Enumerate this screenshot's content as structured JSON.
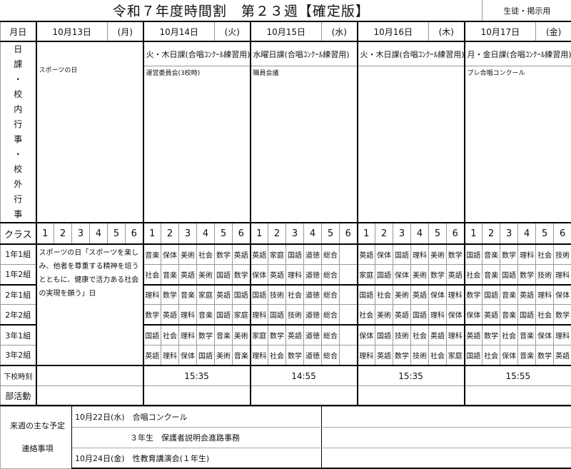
{
  "header": {
    "title": "令和７年度時間割　第２３週【確定版】",
    "audience": "生徒・掲示用"
  },
  "labels": {
    "date": "月日",
    "schedule_events": "日課・校内行事・校外行事",
    "class": "クラス",
    "dismissal": "下校時刻",
    "club": "部活動",
    "next_week": "来週の主な予定",
    "contact": "連絡事項"
  },
  "periods": [
    "1",
    "2",
    "3",
    "4",
    "5",
    "6"
  ],
  "classes": [
    "1年1組",
    "1年2組",
    "2年1組",
    "2年2組",
    "3年1組",
    "3年2組"
  ],
  "days": [
    {
      "date": "10月13日",
      "weekday": "(月)",
      "schedule_type": "",
      "note": "スポーツの日",
      "dismissal": "",
      "club": "",
      "holiday_text": "スポーツの日「スポーツを楽しみ、他者を尊重する精神を培うとともに、健康で活力ある社会の実現を願う」日"
    },
    {
      "date": "10月14日",
      "weekday": "(火)",
      "schedule_type": "火・木日課(合唱ｺﾝｸｰﾙ練習用)",
      "note": "運営委員会(3校時)",
      "dismissal": "15:35",
      "club": "",
      "timetable": [
        [
          "音楽",
          "保体",
          "美術",
          "社会",
          "数学",
          "英語"
        ],
        [
          "社会",
          "音楽",
          "英語",
          "美術",
          "国語",
          "数学"
        ],
        [
          "理科",
          "数学",
          "音楽",
          "家庭",
          "英語",
          "国語"
        ],
        [
          "数学",
          "英語",
          "理科",
          "音楽",
          "国語",
          "家庭"
        ],
        [
          "国語",
          "社会",
          "理科",
          "数学",
          "音楽",
          "美術"
        ],
        [
          "英語",
          "理科",
          "保体",
          "国語",
          "美術",
          "音楽"
        ]
      ]
    },
    {
      "date": "10月15日",
      "weekday": "(水)",
      "schedule_type": "水曜日課(合唱ｺﾝｸｰﾙ練習用)",
      "note": "職員会議",
      "dismissal": "14:55",
      "club": "",
      "timetable": [
        [
          "英語",
          "家庭",
          "国語",
          "道徳",
          "総合",
          ""
        ],
        [
          "保体",
          "英語",
          "理科",
          "道徳",
          "総合",
          ""
        ],
        [
          "国語",
          "技術",
          "社会",
          "道徳",
          "総合",
          ""
        ],
        [
          "理科",
          "国語",
          "技術",
          "道徳",
          "総合",
          ""
        ],
        [
          "家庭",
          "数学",
          "英語",
          "道徳",
          "総合",
          ""
        ],
        [
          "理科",
          "社会",
          "数学",
          "道徳",
          "総合",
          ""
        ]
      ]
    },
    {
      "date": "10月16日",
      "weekday": "(木)",
      "schedule_type": "火・木日課(合唱ｺﾝｸｰﾙ練習用)",
      "note": "",
      "dismissal": "15:35",
      "club": "",
      "timetable": [
        [
          "英語",
          "保体",
          "国語",
          "理科",
          "美術",
          "数学"
        ],
        [
          "家庭",
          "国語",
          "保体",
          "美術",
          "数学",
          "英語"
        ],
        [
          "国語",
          "社会",
          "美術",
          "英語",
          "保体",
          "理科"
        ],
        [
          "社会",
          "美術",
          "英語",
          "国語",
          "理科",
          "保体"
        ],
        [
          "保体",
          "国語",
          "技術",
          "社会",
          "英語",
          "理科"
        ],
        [
          "理科",
          "英語",
          "数学",
          "技術",
          "社会",
          "家庭"
        ]
      ]
    },
    {
      "date": "10月17日",
      "weekday": "(金)",
      "schedule_type": "月・金日課(合唱ｺﾝｸｰﾙ練習用)",
      "note": "プレ合唱コンクール",
      "dismissal": "15:55",
      "club": "",
      "timetable": [
        [
          "国語",
          "音楽",
          "数学",
          "理科",
          "社会",
          "技術"
        ],
        [
          "社会",
          "音楽",
          "国語",
          "数学",
          "技術",
          "理科"
        ],
        [
          "数学",
          "国語",
          "音楽",
          "英語",
          "理科",
          "保体"
        ],
        [
          "保体",
          "英語",
          "音楽",
          "国語",
          "社会",
          "数学"
        ],
        [
          "英語",
          "数学",
          "社会",
          "音楽",
          "保体",
          "理科"
        ],
        [
          "国語",
          "社会",
          "保体",
          "音楽",
          "数学",
          "英語"
        ]
      ]
    }
  ],
  "next_week_items": [
    "10月22日(水)　合唱コンクール",
    "　　　　　　　３年生　保護者説明会進路事務",
    "10月24日(金)　性教育講演会(１年生)"
  ]
}
